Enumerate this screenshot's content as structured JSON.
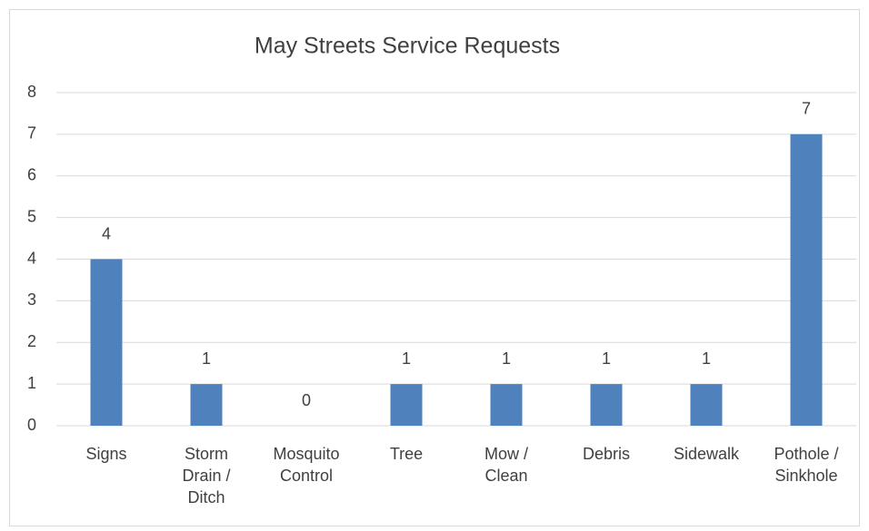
{
  "chart_data": {
    "type": "bar",
    "title": "May Streets Service Requests",
    "categories": [
      "Signs",
      "Storm Drain / Ditch",
      "Mosquito Control",
      "Tree",
      "Mow / Clean",
      "Debris",
      "Sidewalk",
      "Pothole / Sinkhole"
    ],
    "values": [
      4,
      1,
      0,
      1,
      1,
      1,
      1,
      7
    ],
    "color": "#4f81bd",
    "ylim": [
      0,
      8
    ],
    "yticks": [
      0,
      1,
      2,
      3,
      4,
      5,
      6,
      7,
      8
    ],
    "grid": true
  }
}
